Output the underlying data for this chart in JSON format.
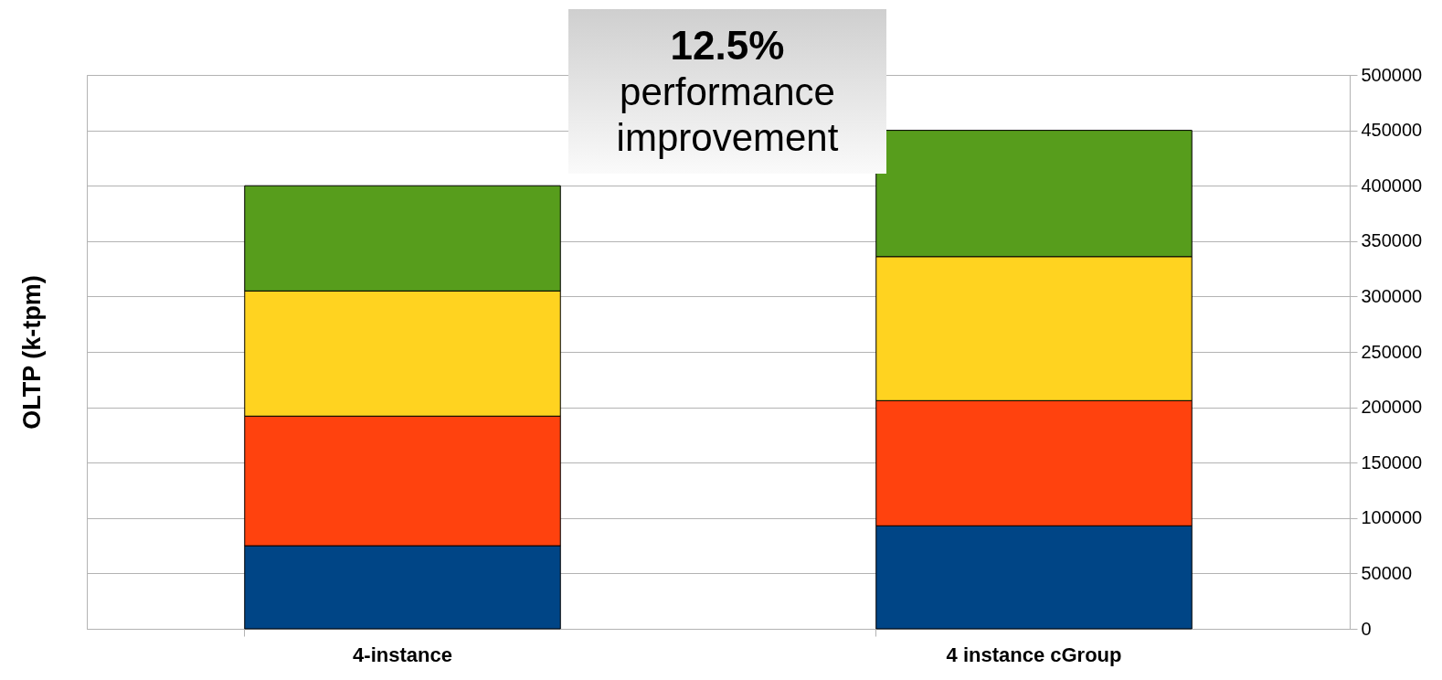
{
  "chart_data": {
    "type": "bar",
    "stacked": true,
    "ylabel": "OLTP (k-tpm)",
    "categories": [
      "4-instance",
      "4 instance cGroup"
    ],
    "series": [
      {
        "color": "#004586",
        "values": [
          75000,
          93000
        ]
      },
      {
        "color": "#ff420e",
        "values": [
          117000,
          113000
        ]
      },
      {
        "color": "#ffd320",
        "values": [
          113000,
          130000
        ]
      },
      {
        "color": "#579d1c",
        "values": [
          95000,
          114000
        ]
      }
    ],
    "ylim": [
      0,
      500000
    ],
    "yticks": [
      0,
      50000,
      100000,
      150000,
      200000,
      250000,
      300000,
      350000,
      400000,
      450000,
      500000
    ],
    "grid": "y",
    "annotations": [
      "12.5%",
      "performance improvement"
    ]
  }
}
